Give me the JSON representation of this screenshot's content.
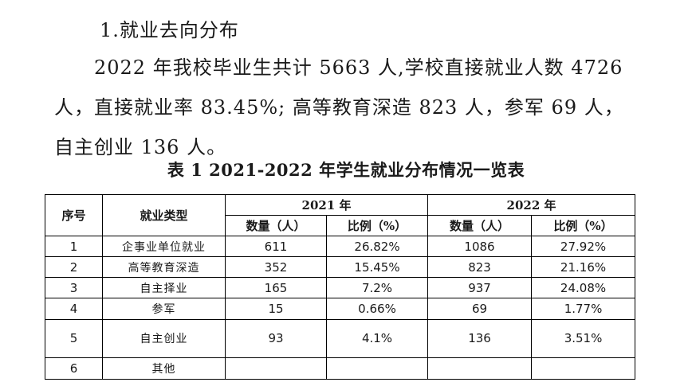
{
  "heading": "1.就业去向分布",
  "paragraph": {
    "line1": "2022 年我校毕业生共计 5663 人,学校直接就业人数 4726",
    "line2": "人，直接就业率 83.45%; 高等教育深造 823 人，参军 69 人，",
    "line3": "自主创业 136 人。"
  },
  "table": {
    "caption": "表 1   2021-2022 年学生就业分布情况一览表",
    "headers": {
      "index": "序号",
      "type": "就业类型",
      "year2021": "2021 年",
      "year2022": "2022 年",
      "count": "数量（人）",
      "ratio": "比例（%）"
    },
    "rows": [
      {
        "no": "1",
        "type": "企事业单位就业",
        "c2021": "611",
        "r2021": "26.82%",
        "c2022": "1086",
        "r2022": "27.92%"
      },
      {
        "no": "2",
        "type": "高等教育深造",
        "c2021": "352",
        "r2021": "15.45%",
        "c2022": "823",
        "r2022": "21.16%"
      },
      {
        "no": "3",
        "type": "自主择业",
        "c2021": "165",
        "r2021": "7.2%",
        "c2022": "937",
        "r2022": "24.08%"
      },
      {
        "no": "4",
        "type": "参军",
        "c2021": "15",
        "r2021": "0.66%",
        "c2022": "69",
        "r2022": "1.77%"
      },
      {
        "no": "5",
        "type": "自主创业",
        "c2021": "93",
        "r2021": "4.1%",
        "c2022": "136",
        "r2022": "3.51%"
      },
      {
        "no": "6",
        "type": "其他",
        "c2021": "",
        "r2021": "",
        "c2022": "",
        "r2022": ""
      }
    ]
  }
}
